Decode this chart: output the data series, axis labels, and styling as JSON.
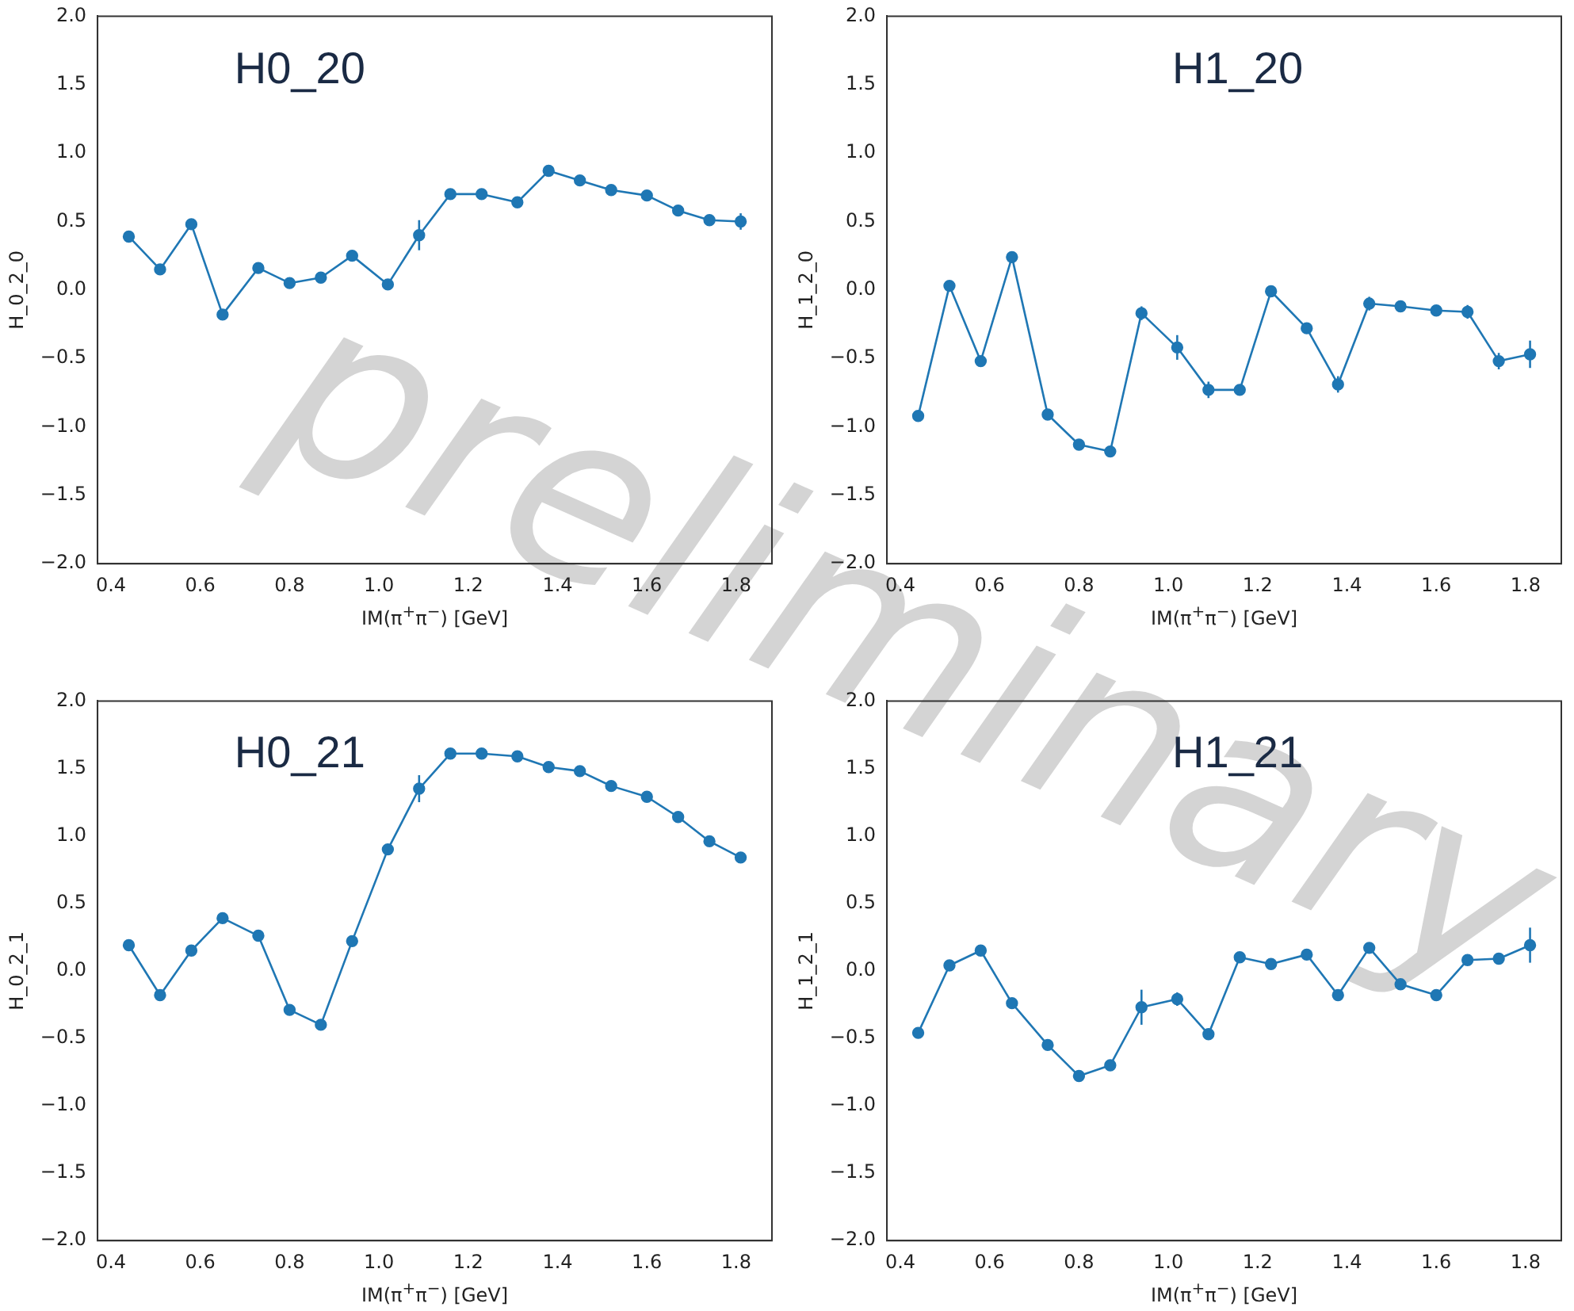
{
  "chart_data": [
    {
      "type": "line",
      "title": "H0_20",
      "xlabel": "IM(π$^{+}$π$^{−}$) [GeV]",
      "ylabel": "H_0_2_0",
      "annotations": [
        "preliminary"
      ],
      "marker": "circle",
      "grid": false,
      "legend": false,
      "xlim": [
        0.37,
        1.88
      ],
      "ylim": [
        -2,
        2
      ],
      "xticks": [
        {
          "value": 0.4,
          "label": "0.4"
        },
        {
          "value": 0.6,
          "label": "0.6"
        },
        {
          "value": 0.8,
          "label": "0.8"
        },
        {
          "value": 1.0,
          "label": "1.0"
        },
        {
          "value": 1.2,
          "label": "1.2"
        },
        {
          "value": 1.4,
          "label": "1.4"
        },
        {
          "value": 1.6,
          "label": "1.6"
        },
        {
          "value": 1.8,
          "label": "1.8"
        }
      ],
      "yticks": [
        {
          "value": -2,
          "label": "−2.0"
        },
        {
          "value": -1.5,
          "label": "−1.5"
        },
        {
          "value": -1,
          "label": "−1.0"
        },
        {
          "value": -0.5,
          "label": "−0.5"
        },
        {
          "value": 0,
          "label": "0.0"
        },
        {
          "value": 0.5,
          "label": "0.5"
        },
        {
          "value": 1,
          "label": "1.0"
        },
        {
          "value": 1.5,
          "label": "1.5"
        },
        {
          "value": 2,
          "label": "2.0"
        }
      ],
      "x": [
        0.44,
        0.51,
        0.58,
        0.65,
        0.73,
        0.8,
        0.87,
        0.94,
        1.02,
        1.09,
        1.16,
        1.23,
        1.31,
        1.38,
        1.45,
        1.52,
        1.6,
        1.67,
        1.74,
        1.81
      ],
      "series": [
        {
          "color": "#1f77b4",
          "values": [
            0.39,
            0.15,
            0.48,
            -0.18,
            0.16,
            0.05,
            0.09,
            0.25,
            0.04,
            0.4,
            0.7,
            0.7,
            0.64,
            0.87,
            0.8,
            0.73,
            0.69,
            0.58,
            0.51,
            0.5
          ],
          "errors": [
            null,
            null,
            null,
            null,
            null,
            null,
            null,
            null,
            0.04,
            0.11,
            null,
            null,
            null,
            null,
            null,
            null,
            null,
            null,
            0.04,
            0.06
          ]
        }
      ]
    },
    {
      "type": "line",
      "title": "H1_20",
      "xlabel": "IM(π$^{+}$π$^{−}$) [GeV]",
      "ylabel": "H_1_2_0",
      "marker": "circle",
      "grid": false,
      "legend": false,
      "xlim": [
        0.37,
        1.88
      ],
      "ylim": [
        -2,
        2
      ],
      "xticks": [
        {
          "value": 0.4,
          "label": "0.4"
        },
        {
          "value": 0.6,
          "label": "0.6"
        },
        {
          "value": 0.8,
          "label": "0.8"
        },
        {
          "value": 1.0,
          "label": "1.0"
        },
        {
          "value": 1.2,
          "label": "1.2"
        },
        {
          "value": 1.4,
          "label": "1.4"
        },
        {
          "value": 1.6,
          "label": "1.6"
        },
        {
          "value": 1.8,
          "label": "1.8"
        }
      ],
      "yticks": [
        {
          "value": -2,
          "label": "−2.0"
        },
        {
          "value": -1.5,
          "label": "−1.5"
        },
        {
          "value": -1,
          "label": "−1.0"
        },
        {
          "value": -0.5,
          "label": "−0.5"
        },
        {
          "value": 0,
          "label": "0.0"
        },
        {
          "value": 0.5,
          "label": "0.5"
        },
        {
          "value": 1,
          "label": "1.0"
        },
        {
          "value": 1.5,
          "label": "1.5"
        },
        {
          "value": 2,
          "label": "2.0"
        }
      ],
      "x": [
        0.44,
        0.51,
        0.58,
        0.65,
        0.73,
        0.8,
        0.87,
        0.94,
        1.02,
        1.09,
        1.16,
        1.23,
        1.31,
        1.38,
        1.45,
        1.52,
        1.6,
        1.67,
        1.74,
        1.81
      ],
      "series": [
        {
          "color": "#1f77b4",
          "values": [
            -0.92,
            0.03,
            -0.52,
            0.24,
            -0.91,
            -1.13,
            -1.18,
            -0.17,
            -0.42,
            -0.73,
            -0.73,
            -0.01,
            -0.28,
            -0.69,
            -0.1,
            -0.12,
            -0.15,
            -0.16,
            -0.52,
            -0.47
          ],
          "errors": [
            null,
            null,
            null,
            null,
            null,
            null,
            0.04,
            0.05,
            0.09,
            0.06,
            0.04,
            null,
            null,
            0.06,
            0.05,
            null,
            null,
            0.05,
            0.06,
            0.1
          ]
        }
      ]
    },
    {
      "type": "line",
      "title": "H0_21",
      "xlabel": "IM(π$^{+}$π$^{−}$) [GeV]",
      "ylabel": "H_0_2_1",
      "marker": "circle",
      "grid": false,
      "legend": false,
      "xlim": [
        0.37,
        1.88
      ],
      "ylim": [
        -2,
        2
      ],
      "xticks": [
        {
          "value": 0.4,
          "label": "0.4"
        },
        {
          "value": 0.6,
          "label": "0.6"
        },
        {
          "value": 0.8,
          "label": "0.8"
        },
        {
          "value": 1.0,
          "label": "1.0"
        },
        {
          "value": 1.2,
          "label": "1.2"
        },
        {
          "value": 1.4,
          "label": "1.4"
        },
        {
          "value": 1.6,
          "label": "1.6"
        },
        {
          "value": 1.8,
          "label": "1.8"
        }
      ],
      "yticks": [
        {
          "value": -2,
          "label": "−2.0"
        },
        {
          "value": -1.5,
          "label": "−1.5"
        },
        {
          "value": -1,
          "label": "−1.0"
        },
        {
          "value": -0.5,
          "label": "−0.5"
        },
        {
          "value": 0,
          "label": "0.0"
        },
        {
          "value": 0.5,
          "label": "0.5"
        },
        {
          "value": 1,
          "label": "1.0"
        },
        {
          "value": 1.5,
          "label": "1.5"
        },
        {
          "value": 2,
          "label": "2.0"
        }
      ],
      "x": [
        0.44,
        0.51,
        0.58,
        0.65,
        0.73,
        0.8,
        0.87,
        0.94,
        1.02,
        1.09,
        1.16,
        1.23,
        1.31,
        1.38,
        1.45,
        1.52,
        1.6,
        1.67,
        1.74,
        1.81
      ],
      "series": [
        {
          "color": "#1f77b4",
          "values": [
            0.19,
            -0.18,
            0.15,
            0.39,
            0.26,
            -0.29,
            -0.4,
            0.22,
            0.9,
            1.35,
            1.61,
            1.61,
            1.59,
            1.51,
            1.48,
            1.37,
            1.29,
            1.14,
            0.96,
            0.84
          ],
          "errors": [
            null,
            null,
            null,
            null,
            null,
            0.04,
            null,
            0.03,
            0.04,
            0.1,
            null,
            null,
            null,
            null,
            null,
            null,
            null,
            null,
            0.03,
            0.04
          ]
        }
      ]
    },
    {
      "type": "line",
      "title": "H1_21",
      "xlabel": "IM(π$^{+}$π$^{−}$) [GeV]",
      "ylabel": "H_1_2_1",
      "marker": "circle",
      "grid": false,
      "legend": false,
      "xlim": [
        0.37,
        1.88
      ],
      "ylim": [
        -2,
        2
      ],
      "xticks": [
        {
          "value": 0.4,
          "label": "0.4"
        },
        {
          "value": 0.6,
          "label": "0.6"
        },
        {
          "value": 0.8,
          "label": "0.8"
        },
        {
          "value": 1.0,
          "label": "1.0"
        },
        {
          "value": 1.2,
          "label": "1.2"
        },
        {
          "value": 1.4,
          "label": "1.4"
        },
        {
          "value": 1.6,
          "label": "1.6"
        },
        {
          "value": 1.8,
          "label": "1.8"
        }
      ],
      "yticks": [
        {
          "value": -2,
          "label": "−2.0"
        },
        {
          "value": -1.5,
          "label": "−1.5"
        },
        {
          "value": -1,
          "label": "−1.0"
        },
        {
          "value": -0.5,
          "label": "−0.5"
        },
        {
          "value": 0,
          "label": "0.0"
        },
        {
          "value": 0.5,
          "label": "0.5"
        },
        {
          "value": 1,
          "label": "1.0"
        },
        {
          "value": 1.5,
          "label": "1.5"
        },
        {
          "value": 2,
          "label": "2.0"
        }
      ],
      "x": [
        0.44,
        0.51,
        0.58,
        0.65,
        0.73,
        0.8,
        0.87,
        0.94,
        1.02,
        1.09,
        1.16,
        1.23,
        1.31,
        1.38,
        1.45,
        1.52,
        1.6,
        1.67,
        1.74,
        1.81
      ],
      "series": [
        {
          "color": "#1f77b4",
          "values": [
            -0.46,
            0.04,
            0.15,
            -0.24,
            -0.55,
            -0.78,
            -0.7,
            -0.27,
            -0.21,
            -0.47,
            0.1,
            0.05,
            0.12,
            -0.18,
            0.17,
            -0.1,
            -0.18,
            0.08,
            0.09,
            0.19
          ],
          "errors": [
            null,
            null,
            null,
            null,
            null,
            null,
            null,
            0.13,
            0.05,
            0.04,
            null,
            null,
            null,
            null,
            null,
            null,
            null,
            null,
            null,
            0.13
          ]
        }
      ]
    }
  ]
}
